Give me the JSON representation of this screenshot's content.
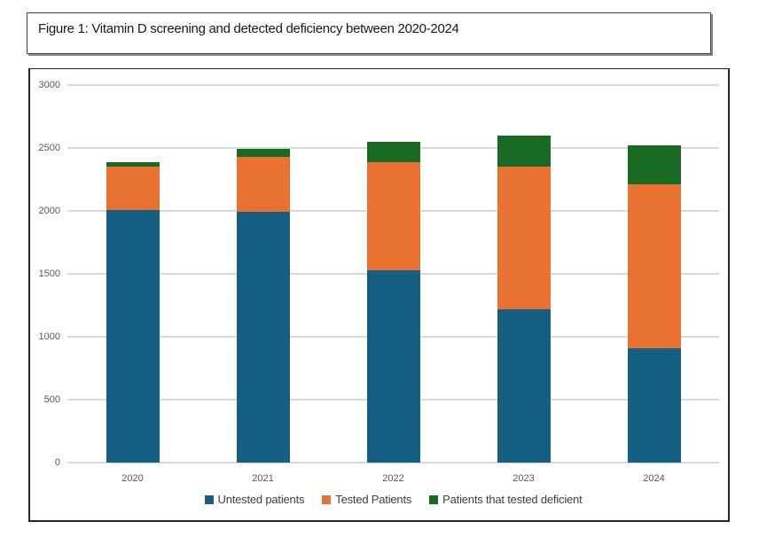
{
  "figure": {
    "title": "Figure 1: Vitamin D screening and detected deficiency between 2020-2024"
  },
  "chart_data": {
    "type": "bar",
    "stacked": true,
    "categories": [
      "2020",
      "2021",
      "2022",
      "2023",
      "2024"
    ],
    "series": [
      {
        "name": "Untested patients",
        "color": "#156082",
        "values": [
          2005,
          1990,
          1530,
          1220,
          910
        ]
      },
      {
        "name": "Tested Patients",
        "color": "#E97132",
        "values": [
          350,
          440,
          860,
          1130,
          1300
        ]
      },
      {
        "name": "Patients that tested deficient",
        "color": "#196B24",
        "values": [
          30,
          60,
          160,
          250,
          310
        ]
      }
    ],
    "stack_totals": [
      2385,
      2490,
      2550,
      2600,
      2520
    ],
    "ylim": [
      0,
      3000
    ],
    "ytick_interval": 500,
    "ytick_labels": [
      "0",
      "500",
      "1000",
      "1500",
      "2000",
      "2500",
      "3000"
    ],
    "xlabel": "",
    "ylabel": "",
    "grid": true,
    "gridline_color": "#d9d9d9",
    "axis_label_color": "#595959",
    "legend_position": "bottom",
    "legend_labels": [
      "Untested patients",
      "Tested Patients",
      "Patients that tested deficient"
    ]
  }
}
